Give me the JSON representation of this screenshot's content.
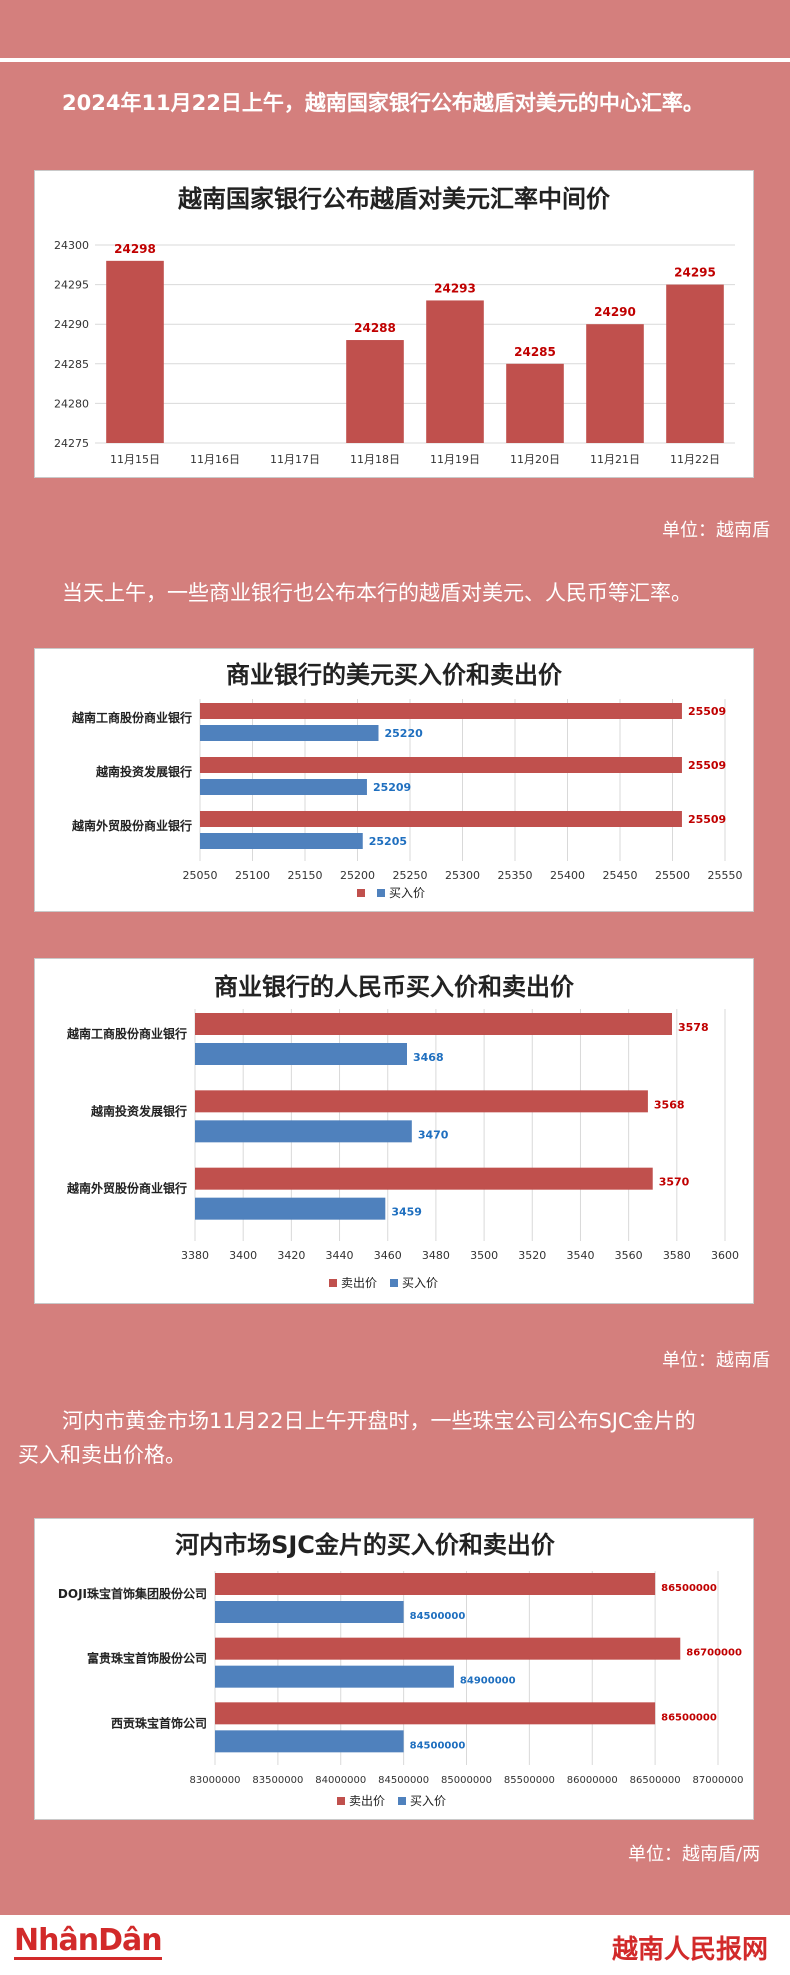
{
  "intro1": "2024年11月22日上午，越南国家银行公布越盾对美元的中心汇率。",
  "intro2": "当天上午，一些商业银行也公布本行的越盾对美元、人民币等汇率。",
  "intro3_line1": "河内市黄金市场11月22日上午开盘时，一些珠宝公司公布SJC金片的",
  "intro3_line2": "买入和卖出价格。",
  "unit1": "单位：越南盾",
  "unit2": "单位：越南盾",
  "unit3": "单位：越南盾/两",
  "footer": {
    "left_logo": "NhânDân",
    "right_logo": "越南人民报网"
  },
  "colors": {
    "red": "#c0504d",
    "blue": "#4f81bd",
    "label_red": "#c00000",
    "label_blue": "#1f6fbf"
  },
  "chart_data": [
    {
      "type": "bar",
      "title": "越南国家银行公布越盾对美元汇率中间价",
      "categories": [
        "11月15日",
        "11月16日",
        "11月17日",
        "11月18日",
        "11月19日",
        "11月20日",
        "11月21日",
        "11月22日"
      ],
      "values": [
        24298,
        null,
        null,
        24288,
        24293,
        24285,
        24290,
        24295
      ],
      "ylim": [
        24275,
        24300
      ],
      "yticks": [
        24275,
        24280,
        24285,
        24290,
        24295,
        24300
      ],
      "grid": true
    },
    {
      "type": "bar",
      "orientation": "horizontal",
      "title": "商业银行的美元买入价和卖出价",
      "categories": [
        "越南工商股份商业银行",
        "越南投资发展银行",
        "越南外贸股份商业银行"
      ],
      "series": [
        {
          "name": "",
          "values": [
            25509,
            25509,
            25509
          ]
        },
        {
          "name": "买入价",
          "values": [
            25220,
            25209,
            25205
          ]
        }
      ],
      "xlim": [
        25050,
        25550
      ],
      "xticks": [
        25050,
        25100,
        25150,
        25200,
        25250,
        25300,
        25350,
        25400,
        25450,
        25500,
        25550
      ],
      "legend": "bottom"
    },
    {
      "type": "bar",
      "orientation": "horizontal",
      "title": "商业银行的人民币买入价和卖出价",
      "categories": [
        "越南工商股份商业银行",
        "越南投资发展银行",
        "越南外贸股份商业银行"
      ],
      "series": [
        {
          "name": "卖出价",
          "values": [
            3578,
            3568,
            3570
          ]
        },
        {
          "name": "买入价",
          "values": [
            3468,
            3470,
            3459
          ]
        }
      ],
      "xlim": [
        3380,
        3600
      ],
      "xticks": [
        3380,
        3400,
        3420,
        3440,
        3460,
        3480,
        3500,
        3520,
        3540,
        3560,
        3580,
        3600
      ],
      "legend": "bottom"
    },
    {
      "type": "bar",
      "orientation": "horizontal",
      "title": "河内市场SJC金片的买入价和卖出价",
      "categories": [
        "DOJI珠宝首饰集团股份公司",
        "富贵珠宝首饰股份公司",
        "西贡珠宝首饰公司"
      ],
      "series": [
        {
          "name": "卖出价",
          "values": [
            86500000,
            86700000,
            86500000
          ]
        },
        {
          "name": "买入价",
          "values": [
            84500000,
            84900000,
            84500000
          ]
        }
      ],
      "xlim": [
        83000000,
        87000000
      ],
      "xticks": [
        83000000,
        83500000,
        84000000,
        84500000,
        85000000,
        85500000,
        86000000,
        86500000,
        87000000
      ],
      "legend": "bottom"
    }
  ]
}
